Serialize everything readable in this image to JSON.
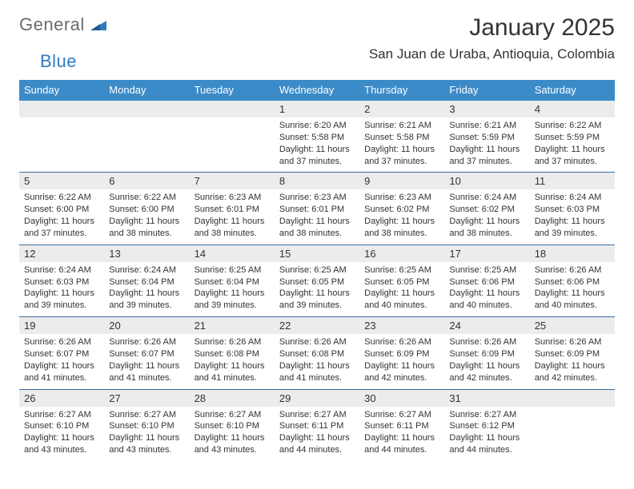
{
  "brand": {
    "text1": "General",
    "text2": "Blue",
    "mark_color": "#2f7bbf"
  },
  "title": "January 2025",
  "location": "San Juan de Uraba, Antioquia, Colombia",
  "header_bg": "#3b8bc8",
  "header_fg": "#ffffff",
  "daynum_bg": "#ececec",
  "rule_color": "#3b6e9e",
  "text_color": "#333333",
  "body_bg": "#ffffff",
  "font_family": "Arial, Helvetica, sans-serif",
  "title_fontsize": 30,
  "location_fontsize": 17,
  "header_fontsize": 13,
  "daynum_fontsize": 13,
  "body_fontsize": 11,
  "day_headers": [
    "Sunday",
    "Monday",
    "Tuesday",
    "Wednesday",
    "Thursday",
    "Friday",
    "Saturday"
  ],
  "weeks": [
    [
      {
        "n": "",
        "sunrise": "",
        "sunset": "",
        "daylight": ""
      },
      {
        "n": "",
        "sunrise": "",
        "sunset": "",
        "daylight": ""
      },
      {
        "n": "",
        "sunrise": "",
        "sunset": "",
        "daylight": ""
      },
      {
        "n": "1",
        "sunrise": "Sunrise: 6:20 AM",
        "sunset": "Sunset: 5:58 PM",
        "daylight": "Daylight: 11 hours and 37 minutes."
      },
      {
        "n": "2",
        "sunrise": "Sunrise: 6:21 AM",
        "sunset": "Sunset: 5:58 PM",
        "daylight": "Daylight: 11 hours and 37 minutes."
      },
      {
        "n": "3",
        "sunrise": "Sunrise: 6:21 AM",
        "sunset": "Sunset: 5:59 PM",
        "daylight": "Daylight: 11 hours and 37 minutes."
      },
      {
        "n": "4",
        "sunrise": "Sunrise: 6:22 AM",
        "sunset": "Sunset: 5:59 PM",
        "daylight": "Daylight: 11 hours and 37 minutes."
      }
    ],
    [
      {
        "n": "5",
        "sunrise": "Sunrise: 6:22 AM",
        "sunset": "Sunset: 6:00 PM",
        "daylight": "Daylight: 11 hours and 37 minutes."
      },
      {
        "n": "6",
        "sunrise": "Sunrise: 6:22 AM",
        "sunset": "Sunset: 6:00 PM",
        "daylight": "Daylight: 11 hours and 38 minutes."
      },
      {
        "n": "7",
        "sunrise": "Sunrise: 6:23 AM",
        "sunset": "Sunset: 6:01 PM",
        "daylight": "Daylight: 11 hours and 38 minutes."
      },
      {
        "n": "8",
        "sunrise": "Sunrise: 6:23 AM",
        "sunset": "Sunset: 6:01 PM",
        "daylight": "Daylight: 11 hours and 38 minutes."
      },
      {
        "n": "9",
        "sunrise": "Sunrise: 6:23 AM",
        "sunset": "Sunset: 6:02 PM",
        "daylight": "Daylight: 11 hours and 38 minutes."
      },
      {
        "n": "10",
        "sunrise": "Sunrise: 6:24 AM",
        "sunset": "Sunset: 6:02 PM",
        "daylight": "Daylight: 11 hours and 38 minutes."
      },
      {
        "n": "11",
        "sunrise": "Sunrise: 6:24 AM",
        "sunset": "Sunset: 6:03 PM",
        "daylight": "Daylight: 11 hours and 39 minutes."
      }
    ],
    [
      {
        "n": "12",
        "sunrise": "Sunrise: 6:24 AM",
        "sunset": "Sunset: 6:03 PM",
        "daylight": "Daylight: 11 hours and 39 minutes."
      },
      {
        "n": "13",
        "sunrise": "Sunrise: 6:24 AM",
        "sunset": "Sunset: 6:04 PM",
        "daylight": "Daylight: 11 hours and 39 minutes."
      },
      {
        "n": "14",
        "sunrise": "Sunrise: 6:25 AM",
        "sunset": "Sunset: 6:04 PM",
        "daylight": "Daylight: 11 hours and 39 minutes."
      },
      {
        "n": "15",
        "sunrise": "Sunrise: 6:25 AM",
        "sunset": "Sunset: 6:05 PM",
        "daylight": "Daylight: 11 hours and 39 minutes."
      },
      {
        "n": "16",
        "sunrise": "Sunrise: 6:25 AM",
        "sunset": "Sunset: 6:05 PM",
        "daylight": "Daylight: 11 hours and 40 minutes."
      },
      {
        "n": "17",
        "sunrise": "Sunrise: 6:25 AM",
        "sunset": "Sunset: 6:06 PM",
        "daylight": "Daylight: 11 hours and 40 minutes."
      },
      {
        "n": "18",
        "sunrise": "Sunrise: 6:26 AM",
        "sunset": "Sunset: 6:06 PM",
        "daylight": "Daylight: 11 hours and 40 minutes."
      }
    ],
    [
      {
        "n": "19",
        "sunrise": "Sunrise: 6:26 AM",
        "sunset": "Sunset: 6:07 PM",
        "daylight": "Daylight: 11 hours and 41 minutes."
      },
      {
        "n": "20",
        "sunrise": "Sunrise: 6:26 AM",
        "sunset": "Sunset: 6:07 PM",
        "daylight": "Daylight: 11 hours and 41 minutes."
      },
      {
        "n": "21",
        "sunrise": "Sunrise: 6:26 AM",
        "sunset": "Sunset: 6:08 PM",
        "daylight": "Daylight: 11 hours and 41 minutes."
      },
      {
        "n": "22",
        "sunrise": "Sunrise: 6:26 AM",
        "sunset": "Sunset: 6:08 PM",
        "daylight": "Daylight: 11 hours and 41 minutes."
      },
      {
        "n": "23",
        "sunrise": "Sunrise: 6:26 AM",
        "sunset": "Sunset: 6:09 PM",
        "daylight": "Daylight: 11 hours and 42 minutes."
      },
      {
        "n": "24",
        "sunrise": "Sunrise: 6:26 AM",
        "sunset": "Sunset: 6:09 PM",
        "daylight": "Daylight: 11 hours and 42 minutes."
      },
      {
        "n": "25",
        "sunrise": "Sunrise: 6:26 AM",
        "sunset": "Sunset: 6:09 PM",
        "daylight": "Daylight: 11 hours and 42 minutes."
      }
    ],
    [
      {
        "n": "26",
        "sunrise": "Sunrise: 6:27 AM",
        "sunset": "Sunset: 6:10 PM",
        "daylight": "Daylight: 11 hours and 43 minutes."
      },
      {
        "n": "27",
        "sunrise": "Sunrise: 6:27 AM",
        "sunset": "Sunset: 6:10 PM",
        "daylight": "Daylight: 11 hours and 43 minutes."
      },
      {
        "n": "28",
        "sunrise": "Sunrise: 6:27 AM",
        "sunset": "Sunset: 6:10 PM",
        "daylight": "Daylight: 11 hours and 43 minutes."
      },
      {
        "n": "29",
        "sunrise": "Sunrise: 6:27 AM",
        "sunset": "Sunset: 6:11 PM",
        "daylight": "Daylight: 11 hours and 44 minutes."
      },
      {
        "n": "30",
        "sunrise": "Sunrise: 6:27 AM",
        "sunset": "Sunset: 6:11 PM",
        "daylight": "Daylight: 11 hours and 44 minutes."
      },
      {
        "n": "31",
        "sunrise": "Sunrise: 6:27 AM",
        "sunset": "Sunset: 6:12 PM",
        "daylight": "Daylight: 11 hours and 44 minutes."
      },
      {
        "n": "",
        "sunrise": "",
        "sunset": "",
        "daylight": ""
      }
    ]
  ]
}
